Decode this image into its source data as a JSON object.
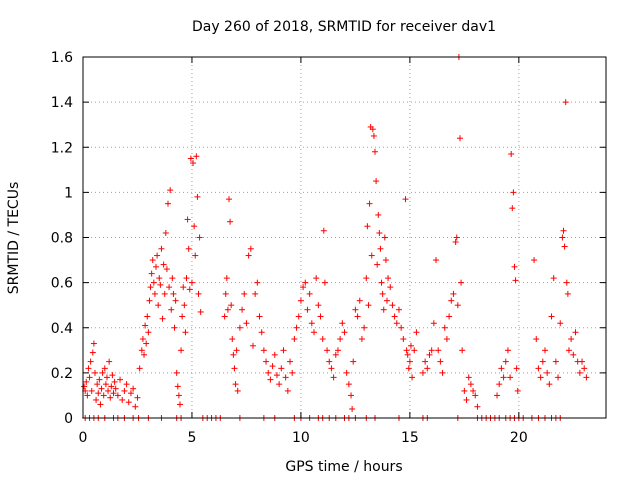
{
  "chart_data": {
    "type": "scatter",
    "title": "Day 260 of 2018, SRMTID for receiver dav1",
    "xlabel": "GPS time / hours",
    "ylabel": "SRMTID / TECUs",
    "xlim": [
      0,
      24
    ],
    "ylim": [
      0,
      1.6
    ],
    "xticks": [
      0,
      5,
      10,
      15,
      20
    ],
    "xtick_labels": [
      "0",
      "5",
      "10",
      "15",
      "20"
    ],
    "yticks": [
      0,
      0.2,
      0.4,
      0.6,
      0.8,
      1,
      1.2,
      1.4,
      1.6
    ],
    "ytick_labels": [
      "0",
      "0.2",
      "0.4",
      "0.6",
      "0.8",
      "1",
      "1.2",
      "1.4",
      "1.6"
    ],
    "grid": true,
    "marker": "+",
    "series_color": "#ff0000",
    "series": [
      {
        "name": "dav1",
        "points": [
          [
            0.05,
            0.14
          ],
          [
            0.1,
            0.12
          ],
          [
            0.15,
            0.16
          ],
          [
            0.2,
            0.1
          ],
          [
            0.25,
            0.22
          ],
          [
            0.3,
            0.18
          ],
          [
            0.35,
            0.25
          ],
          [
            0.4,
            0.12
          ],
          [
            0.45,
            0.29
          ],
          [
            0.5,
            0.33
          ],
          [
            0.55,
            0.2
          ],
          [
            0.6,
            0.08
          ],
          [
            0.65,
            0.15
          ],
          [
            0.7,
            0.11
          ],
          [
            0.75,
            0.17
          ],
          [
            0.8,
            0.06
          ],
          [
            0.85,
            0.13
          ],
          [
            0.9,
            0.2
          ],
          [
            0.95,
            0.1
          ],
          [
            1.0,
            0.22
          ],
          [
            1.05,
            0.15
          ],
          [
            1.1,
            0.18
          ],
          [
            1.15,
            0.12
          ],
          [
            1.2,
            0.25
          ],
          [
            1.25,
            0.09
          ],
          [
            1.3,
            0.14
          ],
          [
            1.35,
            0.19
          ],
          [
            1.4,
            0.11
          ],
          [
            1.45,
            0.16
          ],
          [
            1.5,
            0.13
          ],
          [
            1.6,
            0.1
          ],
          [
            1.7,
            0.17
          ],
          [
            1.8,
            0.08
          ],
          [
            1.9,
            0.12
          ],
          [
            2.0,
            0.15
          ],
          [
            2.1,
            0.07
          ],
          [
            2.2,
            0.11
          ],
          [
            2.3,
            0.13
          ],
          [
            2.4,
            0.05
          ],
          [
            2.5,
            0.09
          ],
          [
            2.6,
            0.22
          ],
          [
            2.7,
            0.3
          ],
          [
            2.75,
            0.35
          ],
          [
            2.8,
            0.28
          ],
          [
            2.85,
            0.41
          ],
          [
            2.9,
            0.33
          ],
          [
            2.95,
            0.45
          ],
          [
            3.0,
            0.38
          ],
          [
            3.05,
            0.52
          ],
          [
            3.1,
            0.58
          ],
          [
            3.15,
            0.64
          ],
          [
            3.2,
            0.7
          ],
          [
            3.25,
            0.6
          ],
          [
            3.3,
            0.55
          ],
          [
            3.35,
            0.67
          ],
          [
            3.4,
            0.72
          ],
          [
            3.45,
            0.5
          ],
          [
            3.5,
            0.62
          ],
          [
            3.55,
            0.59
          ],
          [
            3.6,
            0.75
          ],
          [
            3.65,
            0.44
          ],
          [
            3.7,
            0.68
          ],
          [
            3.75,
            0.55
          ],
          [
            3.8,
            0.82
          ],
          [
            3.85,
            0.66
          ],
          [
            3.9,
            0.95
          ],
          [
            3.95,
            0.58
          ],
          [
            4.0,
            1.01
          ],
          [
            4.05,
            0.48
          ],
          [
            4.1,
            0.62
          ],
          [
            4.15,
            0.55
          ],
          [
            4.2,
            0.4
          ],
          [
            4.25,
            0.52
          ],
          [
            4.3,
            0.2
          ],
          [
            4.35,
            0.14
          ],
          [
            4.4,
            0.1
          ],
          [
            4.45,
            0.06
          ],
          [
            4.5,
            0.3
          ],
          [
            4.55,
            0.45
          ],
          [
            4.6,
            0.58
          ],
          [
            4.65,
            0.5
          ],
          [
            4.7,
            0.38
          ],
          [
            4.75,
            0.62
          ],
          [
            4.8,
            0.88
          ],
          [
            4.85,
            0.75
          ],
          [
            4.9,
            0.57
          ],
          [
            4.95,
            1.15
          ],
          [
            5.0,
            0.6
          ],
          [
            5.05,
            1.13
          ],
          [
            5.1,
            0.85
          ],
          [
            5.15,
            0.72
          ],
          [
            5.2,
            1.16
          ],
          [
            5.25,
            0.98
          ],
          [
            5.3,
            0.55
          ],
          [
            5.35,
            0.8
          ],
          [
            5.4,
            0.47
          ],
          [
            6.5,
            0.45
          ],
          [
            6.55,
            0.55
          ],
          [
            6.6,
            0.62
          ],
          [
            6.65,
            0.48
          ],
          [
            6.7,
            0.97
          ],
          [
            6.75,
            0.87
          ],
          [
            6.8,
            0.5
          ],
          [
            6.85,
            0.35
          ],
          [
            6.9,
            0.28
          ],
          [
            6.95,
            0.22
          ],
          [
            7.0,
            0.15
          ],
          [
            7.05,
            0.3
          ],
          [
            7.1,
            0.12
          ],
          [
            7.2,
            0.4
          ],
          [
            7.3,
            0.48
          ],
          [
            7.4,
            0.55
          ],
          [
            7.5,
            0.42
          ],
          [
            7.6,
            0.72
          ],
          [
            7.7,
            0.75
          ],
          [
            7.8,
            0.32
          ],
          [
            7.9,
            0.55
          ],
          [
            8.0,
            0.6
          ],
          [
            8.1,
            0.45
          ],
          [
            8.2,
            0.38
          ],
          [
            8.3,
            0.3
          ],
          [
            8.4,
            0.25
          ],
          [
            8.5,
            0.2
          ],
          [
            8.6,
            0.17
          ],
          [
            8.7,
            0.23
          ],
          [
            8.8,
            0.28
          ],
          [
            8.9,
            0.19
          ],
          [
            9.0,
            0.15
          ],
          [
            9.1,
            0.22
          ],
          [
            9.2,
            0.3
          ],
          [
            9.3,
            0.18
          ],
          [
            9.4,
            0.12
          ],
          [
            9.5,
            0.25
          ],
          [
            9.6,
            0.2
          ],
          [
            9.7,
            0.35
          ],
          [
            9.8,
            0.4
          ],
          [
            9.9,
            0.45
          ],
          [
            10.0,
            0.52
          ],
          [
            10.1,
            0.58
          ],
          [
            10.2,
            0.6
          ],
          [
            10.3,
            0.48
          ],
          [
            10.4,
            0.55
          ],
          [
            10.5,
            0.42
          ],
          [
            10.6,
            0.38
          ],
          [
            10.7,
            0.62
          ],
          [
            10.8,
            0.5
          ],
          [
            10.9,
            0.45
          ],
          [
            11.0,
            0.35
          ],
          [
            11.05,
            0.83
          ],
          [
            11.1,
            0.6
          ],
          [
            11.2,
            0.3
          ],
          [
            11.3,
            0.25
          ],
          [
            11.4,
            0.22
          ],
          [
            11.5,
            0.18
          ],
          [
            11.6,
            0.28
          ],
          [
            11.7,
            0.3
          ],
          [
            11.8,
            0.35
          ],
          [
            11.9,
            0.42
          ],
          [
            12.0,
            0.38
          ],
          [
            12.1,
            0.2
          ],
          [
            12.2,
            0.15
          ],
          [
            12.3,
            0.1
          ],
          [
            12.35,
            0.04
          ],
          [
            12.4,
            0.25
          ],
          [
            12.5,
            0.48
          ],
          [
            12.6,
            0.45
          ],
          [
            12.7,
            0.52
          ],
          [
            12.8,
            0.35
          ],
          [
            12.9,
            0.4
          ],
          [
            13.0,
            0.62
          ],
          [
            13.05,
            0.85
          ],
          [
            13.1,
            0.5
          ],
          [
            13.15,
            0.95
          ],
          [
            13.2,
            1.29
          ],
          [
            13.25,
            0.72
          ],
          [
            13.3,
            1.28
          ],
          [
            13.35,
            1.25
          ],
          [
            13.4,
            1.18
          ],
          [
            13.45,
            1.05
          ],
          [
            13.5,
            0.68
          ],
          [
            13.55,
            0.9
          ],
          [
            13.6,
            0.82
          ],
          [
            13.65,
            0.75
          ],
          [
            13.7,
            0.6
          ],
          [
            13.75,
            0.55
          ],
          [
            13.8,
            0.48
          ],
          [
            13.85,
            0.8
          ],
          [
            13.9,
            0.7
          ],
          [
            13.95,
            0.52
          ],
          [
            14.0,
            0.62
          ],
          [
            14.1,
            0.58
          ],
          [
            14.2,
            0.5
          ],
          [
            14.3,
            0.45
          ],
          [
            14.4,
            0.42
          ],
          [
            14.5,
            0.48
          ],
          [
            14.6,
            0.4
          ],
          [
            14.7,
            0.35
          ],
          [
            14.8,
            0.97
          ],
          [
            14.85,
            0.3
          ],
          [
            14.9,
            0.28
          ],
          [
            14.95,
            0.22
          ],
          [
            15.0,
            0.25
          ],
          [
            15.05,
            0.32
          ],
          [
            15.1,
            0.18
          ],
          [
            15.2,
            0.3
          ],
          [
            15.3,
            0.38
          ],
          [
            15.6,
            0.2
          ],
          [
            15.7,
            0.25
          ],
          [
            15.8,
            0.22
          ],
          [
            15.9,
            0.28
          ],
          [
            16.0,
            0.3
          ],
          [
            16.1,
            0.42
          ],
          [
            16.2,
            0.7
          ],
          [
            16.3,
            0.3
          ],
          [
            16.4,
            0.25
          ],
          [
            16.5,
            0.2
          ],
          [
            16.6,
            0.4
          ],
          [
            16.7,
            0.35
          ],
          [
            16.8,
            0.45
          ],
          [
            16.9,
            0.52
          ],
          [
            17.0,
            0.55
          ],
          [
            17.1,
            0.78
          ],
          [
            17.15,
            0.8
          ],
          [
            17.2,
            0.5
          ],
          [
            17.25,
            1.6
          ],
          [
            17.3,
            1.24
          ],
          [
            17.35,
            0.6
          ],
          [
            17.4,
            0.3
          ],
          [
            17.5,
            0.12
          ],
          [
            17.6,
            0.08
          ],
          [
            17.7,
            0.18
          ],
          [
            17.8,
            0.15
          ],
          [
            17.9,
            0.12
          ],
          [
            18.0,
            0.1
          ],
          [
            18.1,
            0.05
          ],
          [
            19.0,
            0.1
          ],
          [
            19.1,
            0.15
          ],
          [
            19.2,
            0.22
          ],
          [
            19.3,
            0.18
          ],
          [
            19.4,
            0.25
          ],
          [
            19.5,
            0.3
          ],
          [
            19.6,
            0.18
          ],
          [
            19.65,
            1.17
          ],
          [
            19.7,
            0.93
          ],
          [
            19.75,
            1.0
          ],
          [
            19.8,
            0.67
          ],
          [
            19.85,
            0.61
          ],
          [
            19.9,
            0.22
          ],
          [
            19.95,
            0.12
          ],
          [
            20.7,
            0.7
          ],
          [
            20.8,
            0.35
          ],
          [
            20.9,
            0.22
          ],
          [
            21.0,
            0.18
          ],
          [
            21.1,
            0.25
          ],
          [
            21.2,
            0.3
          ],
          [
            21.3,
            0.2
          ],
          [
            21.4,
            0.15
          ],
          [
            21.5,
            0.45
          ],
          [
            21.6,
            0.62
          ],
          [
            21.7,
            0.25
          ],
          [
            21.8,
            0.18
          ],
          [
            21.9,
            0.42
          ],
          [
            22.0,
            0.8
          ],
          [
            22.05,
            0.83
          ],
          [
            22.1,
            0.76
          ],
          [
            22.15,
            1.4
          ],
          [
            22.2,
            0.6
          ],
          [
            22.25,
            0.55
          ],
          [
            22.3,
            0.3
          ],
          [
            22.4,
            0.35
          ],
          [
            22.5,
            0.28
          ],
          [
            22.6,
            0.38
          ],
          [
            22.7,
            0.25
          ],
          [
            22.8,
            0.2
          ],
          [
            22.9,
            0.25
          ],
          [
            23.0,
            0.22
          ],
          [
            23.1,
            0.18
          ]
        ],
        "zero_points_x": [
          0.1,
          0.3,
          0.5,
          0.7,
          1.0,
          1.4,
          1.6,
          1.9,
          2.3,
          2.55,
          3.0,
          3.6,
          4.3,
          4.5,
          5.5,
          5.7,
          5.9,
          6.1,
          6.3,
          7.2,
          8.3,
          8.8,
          9.7,
          10.0,
          10.4,
          10.8,
          11.0,
          11.3,
          11.6,
          12.0,
          12.2,
          12.5,
          13.0,
          13.4,
          14.5,
          15.6,
          15.8,
          17.2,
          18.1,
          18.3,
          18.5,
          18.7,
          18.9,
          19.1,
          19.4,
          19.6,
          19.8,
          20.0,
          20.2,
          20.6,
          20.9,
          21.2,
          21.5,
          21.7,
          21.9
        ]
      }
    ]
  }
}
